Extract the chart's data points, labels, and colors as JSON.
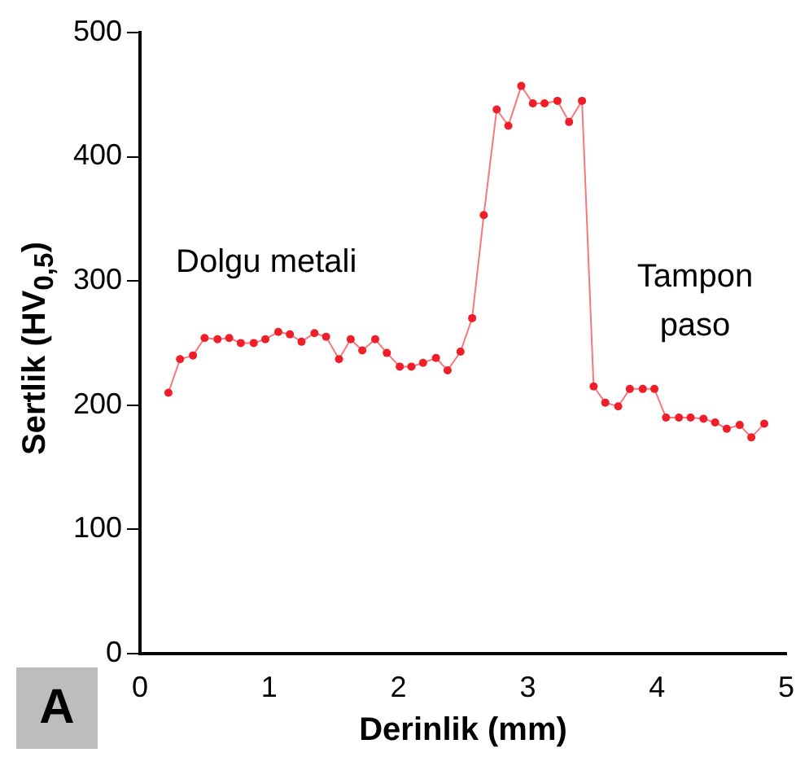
{
  "chart_data": {
    "type": "line",
    "xlabel": "Derinlik (mm)",
    "ylabel": "Sertlik (HV$_{0,5}$)",
    "x": [
      0.22,
      0.31,
      0.41,
      0.5,
      0.6,
      0.69,
      0.78,
      0.88,
      0.97,
      1.07,
      1.16,
      1.25,
      1.35,
      1.44,
      1.54,
      1.63,
      1.72,
      1.82,
      1.91,
      2.01,
      2.1,
      2.19,
      2.29,
      2.38,
      2.48,
      2.57,
      2.66,
      2.76,
      2.85,
      2.95,
      3.04,
      3.13,
      3.23,
      3.32,
      3.42,
      3.51,
      3.6,
      3.7,
      3.79,
      3.89,
      3.98,
      4.07,
      4.17,
      4.26,
      4.36,
      4.45,
      4.54,
      4.64,
      4.73,
      4.83
    ],
    "values": [
      210,
      237,
      240,
      254,
      253,
      254,
      250,
      250,
      253,
      259,
      257,
      251,
      258,
      255,
      237,
      253,
      244,
      253,
      242,
      231,
      231,
      234,
      238,
      228,
      243,
      270,
      353,
      438,
      425,
      457,
      443,
      443,
      445,
      428,
      445,
      215,
      202,
      199,
      213,
      213,
      213,
      190,
      190,
      190,
      189,
      186,
      181,
      184,
      174,
      185
    ],
    "color": "#f01e28",
    "marker": "circle",
    "line_style": "solid",
    "grid": false,
    "legend": false,
    "xlim": [
      0,
      5
    ],
    "xticks": [
      0,
      1,
      2,
      3,
      4,
      5
    ],
    "ylim": [
      0,
      500
    ],
    "yticks": [
      0,
      100,
      200,
      300,
      400,
      500
    ],
    "annotations": [
      "Dolgu metali",
      "Tampon paso",
      "A"
    ]
  }
}
